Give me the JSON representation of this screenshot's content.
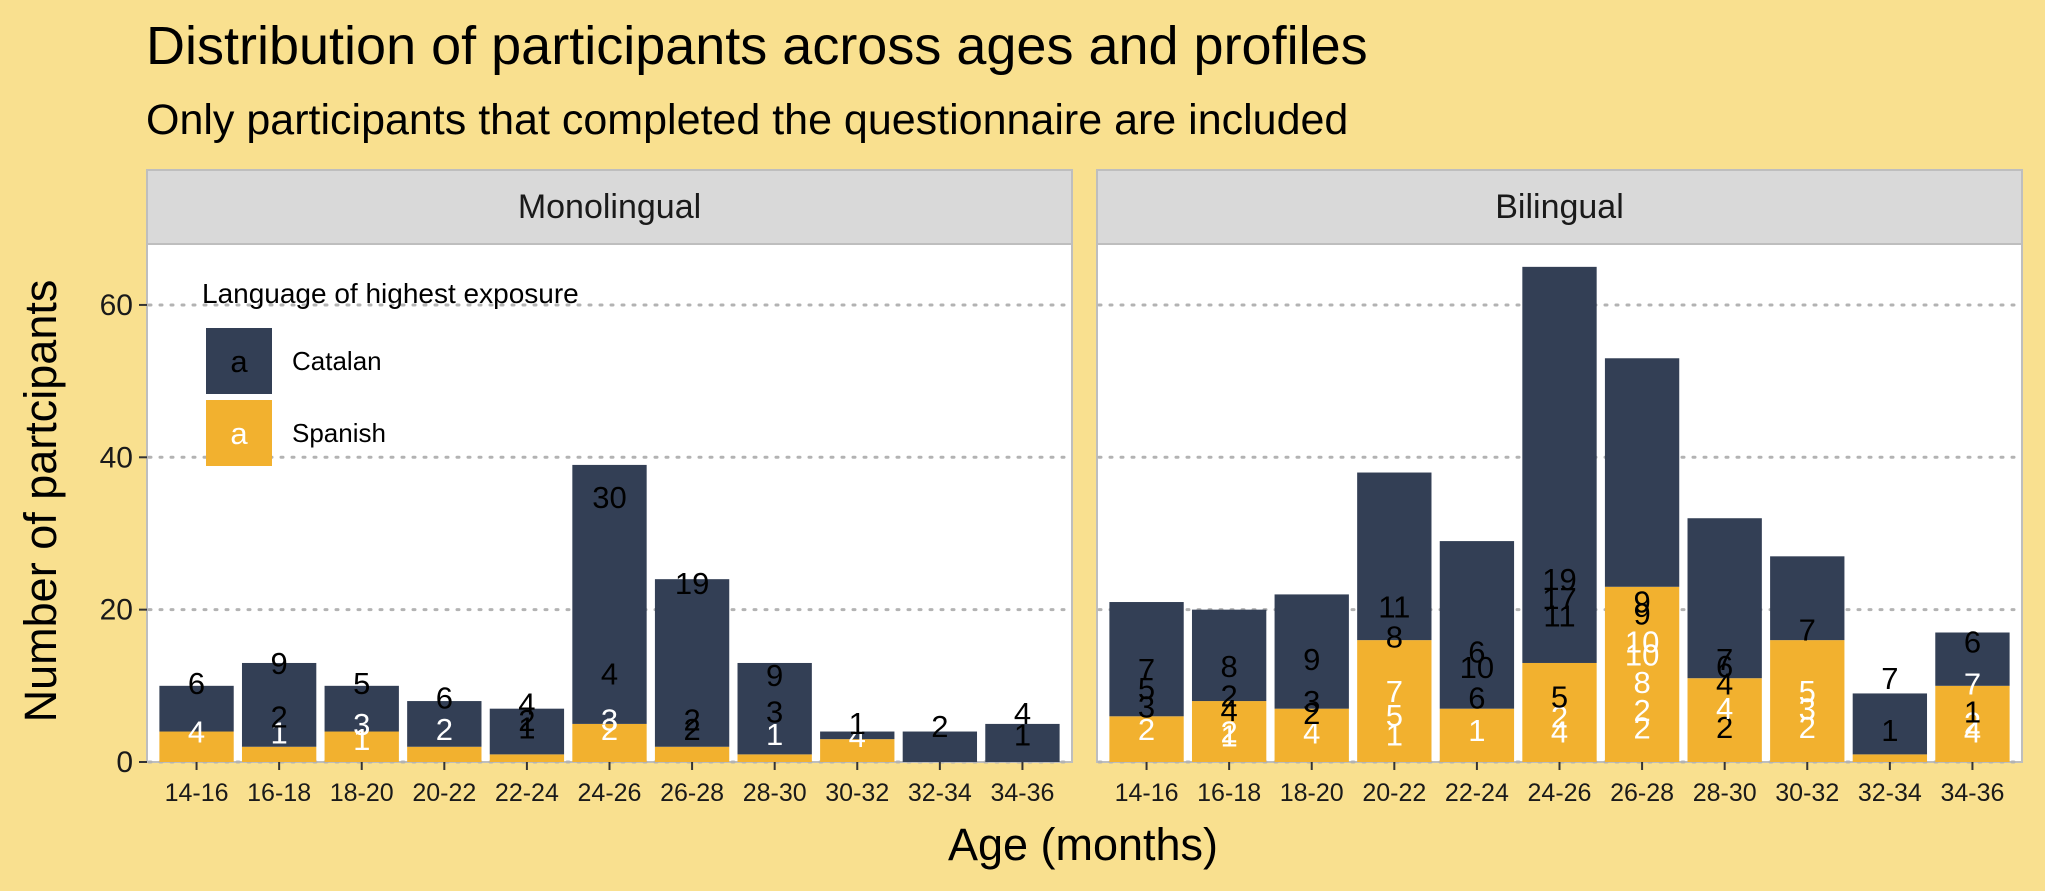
{
  "chart_data": {
    "type": "bar",
    "stacked": true,
    "title": "Distribution of participants across ages and profiles",
    "subtitle": "Only participants that completed the questionnaire are included",
    "xlabel": "Age (months)",
    "ylabel": "Number of partcipants",
    "ylim": [
      0,
      68
    ],
    "yticks": [
      0,
      20,
      40,
      60
    ],
    "grid": "horizontal dotted",
    "categories": [
      "14-16",
      "16-18",
      "18-20",
      "20-22",
      "22-24",
      "24-26",
      "26-28",
      "28-30",
      "30-32",
      "32-34",
      "34-36"
    ],
    "legend": {
      "title": "Language of highest exposure",
      "position": "top-left inside first panel",
      "key_glyph": "a",
      "entries": [
        {
          "name": "Catalan",
          "color": "#333F55"
        },
        {
          "name": "Spanish",
          "color": "#F2B12F"
        }
      ]
    },
    "panels": [
      {
        "name": "Monolingual",
        "series": [
          {
            "name": "Spanish",
            "values": [
              4,
              2,
              4,
              2,
              1,
              5,
              2,
              1,
              3,
              0,
              0
            ]
          },
          {
            "name": "Catalan",
            "values": [
              6,
              11,
              6,
              6,
              6,
              34,
              22,
              12,
              1,
              4,
              5
            ]
          }
        ],
        "segment_labels": [
          {
            "category": "14-16",
            "labels": [
              {
                "text": "4",
                "y": 4,
                "series": "Spanish"
              },
              {
                "text": "6",
                "y": 10.4,
                "series": "Catalan"
              }
            ]
          },
          {
            "category": "16-18",
            "labels": [
              {
                "text": "1",
                "y": 3.9,
                "series": "Spanish"
              },
              {
                "text": "2",
                "y": 6,
                "series": "Catalan"
              },
              {
                "text": "9",
                "y": 13,
                "series": "Catalan"
              }
            ]
          },
          {
            "category": "18-20",
            "labels": [
              {
                "text": "1",
                "y": 3,
                "series": "Spanish"
              },
              {
                "text": "3",
                "y": 5,
                "series": "Spanish"
              },
              {
                "text": "5",
                "y": 10.4,
                "series": "Catalan"
              }
            ]
          },
          {
            "category": "20-22",
            "labels": [
              {
                "text": "2",
                "y": 4.3,
                "series": "Spanish"
              },
              {
                "text": "6",
                "y": 8.5,
                "series": "Catalan"
              }
            ]
          },
          {
            "category": "22-24",
            "labels": [
              {
                "text": "1",
                "y": 4.5,
                "series": "Catalan"
              },
              {
                "text": "2",
                "y": 5.5,
                "series": "Catalan"
              },
              {
                "text": "4",
                "y": 7.7,
                "series": "Catalan"
              }
            ]
          },
          {
            "category": "24-26",
            "labels": [
              {
                "text": "2",
                "y": 4.3,
                "series": "Spanish"
              },
              {
                "text": "3",
                "y": 5.6,
                "series": "Spanish"
              },
              {
                "text": "4",
                "y": 11.6,
                "series": "Catalan"
              },
              {
                "text": "30",
                "y": 34.8,
                "series": "Catalan"
              }
            ]
          },
          {
            "category": "26-28",
            "labels": [
              {
                "text": "2",
                "y": 4.3,
                "series": "Catalan"
              },
              {
                "text": "2",
                "y": 5.6,
                "series": "Catalan"
              },
              {
                "text": "19",
                "y": 23.5,
                "series": "Catalan"
              }
            ]
          },
          {
            "category": "28-30",
            "labels": [
              {
                "text": "1",
                "y": 3.7,
                "series": "Spanish"
              },
              {
                "text": "3",
                "y": 6.6,
                "series": "Catalan"
              },
              {
                "text": "9",
                "y": 11.4,
                "series": "Catalan"
              }
            ]
          },
          {
            "category": "30-32",
            "labels": [
              {
                "text": "4",
                "y": 3.4,
                "series": "Spanish"
              },
              {
                "text": "1",
                "y": 5.1,
                "series": "Catalan"
              }
            ]
          },
          {
            "category": "32-34",
            "labels": [
              {
                "text": "2",
                "y": 4.7,
                "series": "Catalan"
              }
            ]
          },
          {
            "category": "34-36",
            "labels": [
              {
                "text": "1",
                "y": 3.6,
                "series": "Catalan"
              },
              {
                "text": "4",
                "y": 6.4,
                "series": "Catalan"
              }
            ]
          }
        ]
      },
      {
        "name": "Bilingual",
        "series": [
          {
            "name": "Spanish",
            "values": [
              6,
              8,
              7,
              16,
              7,
              13,
              23,
              11,
              16,
              1,
              10
            ]
          },
          {
            "name": "Catalan",
            "values": [
              15,
              12,
              15,
              22,
              22,
              52,
              30,
              21,
              11,
              8,
              7
            ]
          }
        ],
        "segment_labels": [
          {
            "category": "14-16",
            "labels": [
              {
                "text": "2",
                "y": 4.3,
                "series": "Spanish"
              },
              {
                "text": "3",
                "y": 7.3,
                "series": "Catalan"
              },
              {
                "text": "5",
                "y": 9.7,
                "series": "Catalan"
              },
              {
                "text": "7",
                "y": 12.2,
                "series": "Catalan"
              }
            ]
          },
          {
            "category": "16-18",
            "labels": [
              {
                "text": "2",
                "y": 4,
                "series": "Spanish"
              },
              {
                "text": "1",
                "y": 3.5,
                "series": "Spanish"
              },
              {
                "text": "4",
                "y": 6.8,
                "series": "Catalan"
              },
              {
                "text": "2",
                "y": 8.7,
                "series": "Catalan"
              },
              {
                "text": "8",
                "y": 12.6,
                "series": "Catalan"
              }
            ]
          },
          {
            "category": "18-20",
            "labels": [
              {
                "text": "4",
                "y": 3.9,
                "series": "Spanish"
              },
              {
                "text": "2",
                "y": 6.4,
                "series": "Catalan"
              },
              {
                "text": "3",
                "y": 8,
                "series": "Catalan"
              },
              {
                "text": "9",
                "y": 13.5,
                "series": "Catalan"
              }
            ]
          },
          {
            "category": "20-22",
            "labels": [
              {
                "text": "1",
                "y": 3.6,
                "series": "Spanish"
              },
              {
                "text": "5",
                "y": 6.2,
                "series": "Spanish"
              },
              {
                "text": "7",
                "y": 9.3,
                "series": "Spanish"
              },
              {
                "text": "8",
                "y": 16.5,
                "series": "Catalan"
              },
              {
                "text": "11",
                "y": 20.4,
                "series": "Catalan"
              }
            ]
          },
          {
            "category": "22-24",
            "labels": [
              {
                "text": "1",
                "y": 4.2,
                "series": "Spanish"
              },
              {
                "text": "6",
                "y": 8.5,
                "series": "Catalan"
              },
              {
                "text": "10",
                "y": 12.5,
                "series": "Catalan"
              },
              {
                "text": "6",
                "y": 14.5,
                "series": "Catalan"
              }
            ]
          },
          {
            "category": "24-26",
            "labels": [
              {
                "text": "4",
                "y": 4,
                "series": "Spanish"
              },
              {
                "text": "2",
                "y": 6,
                "series": "Spanish"
              },
              {
                "text": "5",
                "y": 8.6,
                "series": "Catalan"
              },
              {
                "text": "11",
                "y": 19.2,
                "series": "Catalan"
              },
              {
                "text": "17",
                "y": 21.5,
                "series": "Catalan"
              },
              {
                "text": "19",
                "y": 24,
                "series": "Catalan"
              }
            ]
          },
          {
            "category": "26-28",
            "labels": [
              {
                "text": "2",
                "y": 4.5,
                "series": "Spanish"
              },
              {
                "text": "2",
                "y": 6.8,
                "series": "Spanish"
              },
              {
                "text": "8",
                "y": 10.5,
                "series": "Spanish"
              },
              {
                "text": "10",
                "y": 14.1,
                "series": "Spanish"
              },
              {
                "text": "10",
                "y": 15.8,
                "series": "Spanish"
              },
              {
                "text": "9",
                "y": 19.5,
                "series": "Catalan"
              },
              {
                "text": "9",
                "y": 21.1,
                "series": "Catalan"
              }
            ]
          },
          {
            "category": "28-30",
            "labels": [
              {
                "text": "2",
                "y": 4.6,
                "series": "Catalan"
              },
              {
                "text": "4",
                "y": 7.1,
                "series": "Spanish"
              },
              {
                "text": "4",
                "y": 10.3,
                "series": "Catalan"
              },
              {
                "text": "6",
                "y": 12.6,
                "series": "Catalan"
              },
              {
                "text": "7",
                "y": 13.5,
                "series": "Catalan"
              }
            ]
          },
          {
            "category": "30-32",
            "labels": [
              {
                "text": "2",
                "y": 4.6,
                "series": "Spanish"
              },
              {
                "text": "3",
                "y": 7,
                "series": "Spanish"
              },
              {
                "text": "5",
                "y": 9.3,
                "series": "Spanish"
              },
              {
                "text": "7",
                "y": 17.4,
                "series": "Catalan"
              }
            ]
          },
          {
            "category": "32-34",
            "labels": [
              {
                "text": "1",
                "y": 4.2,
                "series": "Catalan"
              },
              {
                "text": "7",
                "y": 11,
                "series": "Catalan"
              }
            ]
          },
          {
            "category": "34-36",
            "labels": [
              {
                "text": "4",
                "y": 4,
                "series": "Spanish"
              },
              {
                "text": "2",
                "y": 5.2,
                "series": "Spanish"
              },
              {
                "text": "1",
                "y": 6.6,
                "series": "Catalan"
              },
              {
                "text": "7",
                "y": 10.3,
                "series": "Spanish"
              },
              {
                "text": "6",
                "y": 15.8,
                "series": "Catalan"
              }
            ]
          }
        ]
      }
    ]
  }
}
